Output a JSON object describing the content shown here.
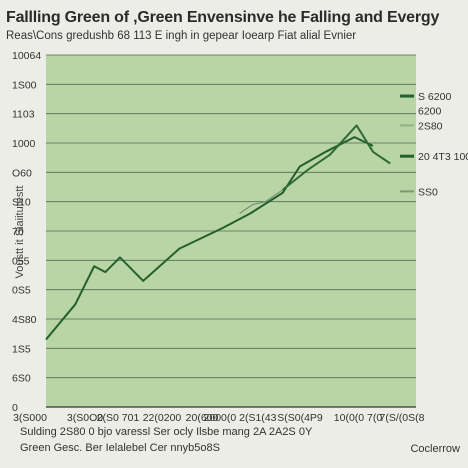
{
  "chart_data": {
    "type": "line",
    "title": "Fallling Green  of ,Green Envensinve he Falling and Evergy",
    "subtitle": "Reas\\Cons gredushb 68 113 E ingh  in  gepear Ioearp Fiat alial Evnier",
    "ylabel": "Voustt it Siaiitutestt",
    "xlabel": "",
    "footnotes": [
      "Sulding 2S80 0 bjo varessl Ser ocly Ilsbe mang  2A 2A2S 0Y",
      "Green Gesc. Ber Ielalebel Cer nnyb5o8S"
    ],
    "credit": "Coclerrow",
    "y_tick_labels": [
      "0",
      "6S0",
      "1S5",
      "4S80",
      "0S5",
      "055",
      "70",
      "S10",
      "O60",
      "1000",
      "1103",
      "1S00",
      "10064"
    ],
    "x_tick_labels": [
      "3(S000",
      "3(S0O0",
      "2(S0 701",
      "22(0200",
      "20(600",
      "2000(0 2(S1(43",
      "S(S0(4P9",
      "10(0(0 7(0",
      "7(S/(0S(8"
    ],
    "ylim": [
      0,
      12
    ],
    "grid": true,
    "colors": {
      "plot_background": "#b9d4a5",
      "line_primary": "#245f2f",
      "line_secondary": "#2e6b37",
      "line_faint": "#6a8a6a",
      "grid": "#4e6f4e"
    },
    "series": [
      {
        "name": "",
        "x": [
          0,
          0.68,
          1.12,
          1.38,
          1.72,
          2.26,
          3.1,
          4.1,
          4.75,
          5.5,
          5.9,
          6.5,
          7.17,
          7.6
        ],
        "values": [
          2.3,
          3.5,
          4.8,
          4.6,
          5.1,
          4.3,
          5.4,
          6.1,
          6.6,
          7.3,
          8.2,
          8.7,
          9.2,
          8.9
        ]
      },
      {
        "name": "",
        "x": [
          5.5,
          6.1,
          6.6,
          7.22,
          7.6,
          8.0
        ],
        "values": [
          7.4,
          8.1,
          8.6,
          9.6,
          8.7,
          8.3
        ]
      },
      {
        "name": "",
        "x": [
          4.5,
          4.8,
          5.1,
          5.5
        ],
        "values": [
          6.6,
          6.9,
          7.0,
          7.4
        ]
      }
    ],
    "end_labels": [
      {
        "label": "S 6200",
        "value": 10.6,
        "weight": "heavy"
      },
      {
        "label": "6200",
        "value": 10.1,
        "weight": "none"
      },
      {
        "label": "2S80",
        "value": 9.6,
        "weight": "light"
      },
      {
        "label": "20 4T3 100",
        "value": 8.55,
        "weight": "heavy"
      },
      {
        "label": "SS0",
        "value": 7.35,
        "weight": "faint"
      }
    ]
  }
}
